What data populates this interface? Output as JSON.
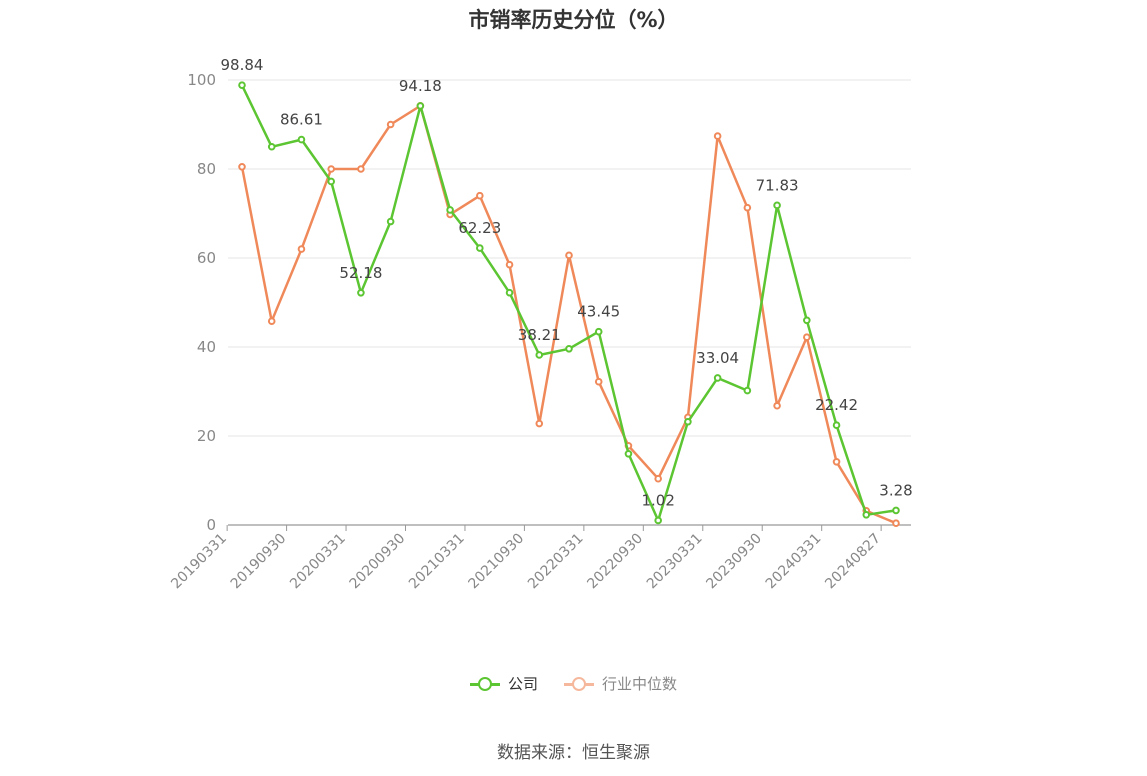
{
  "title": "市销率历史分位（%）",
  "source": "数据来源：恒生聚源",
  "legend": [
    "公司",
    "行业中位数"
  ],
  "chart_data": {
    "type": "line",
    "title": "市销率历史分位（%）",
    "x_tick_labels": [
      "20190331",
      "20190930",
      "20200331",
      "20200930",
      "20210331",
      "20210930",
      "20220331",
      "20220930",
      "20230331",
      "20230930",
      "20240331",
      "20240827"
    ],
    "ylim": [
      0,
      100
    ],
    "yticks": [
      0,
      20,
      40,
      60,
      80,
      100
    ],
    "grid": true,
    "legend_position": "bottom-center",
    "colors": {
      "公司": "#5cc532",
      "行业中位数": "#f0895a"
    },
    "series": [
      {
        "name": "公司",
        "values": [
          98.84,
          85.0,
          86.61,
          77.2,
          52.18,
          68.2,
          94.18,
          70.8,
          62.23,
          52.2,
          38.21,
          39.6,
          43.45,
          16.0,
          1.02,
          23.2,
          33.04,
          30.2,
          71.83,
          46.0,
          22.42,
          2.3,
          3.28
        ],
        "labels": [
          "98.84",
          "",
          "86.61",
          "",
          "52.18",
          "",
          "94.18",
          "",
          "62.23",
          "",
          "38.21",
          "",
          "43.45",
          "",
          "1.02",
          "",
          "33.04",
          "",
          "71.83",
          "",
          "22.42",
          "",
          "3.28"
        ]
      },
      {
        "name": "行业中位数",
        "values": [
          80.5,
          45.8,
          62.0,
          80.0,
          80.0,
          90.0,
          94.2,
          69.8,
          74.0,
          58.5,
          22.8,
          60.6,
          32.2,
          17.8,
          10.4,
          24.2,
          87.4,
          71.3,
          26.8,
          42.2,
          14.2,
          3.2,
          0.4
        ]
      }
    ]
  }
}
